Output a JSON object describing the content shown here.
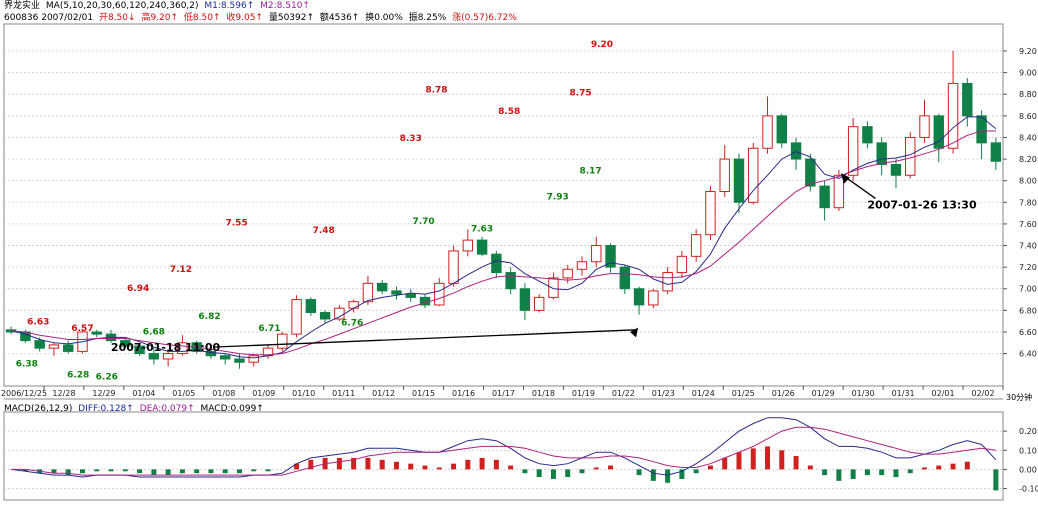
{
  "header": {
    "stock_name": "界龙实业",
    "ma_label": "MA(5,10,20,30,60,120,240,360,2)",
    "m1_label": "M1:8.596↑",
    "m2_label": "M2:8.510↑",
    "code_date": "600836 2007/02/01",
    "open": "开8.50↓",
    "high": "高9.20↑",
    "low": "低8.50↑",
    "close": "收9.05↑",
    "volume": "量50392↑",
    "amount": "额4536↑",
    "turnover": "换0.00%",
    "amplitude": "振8.25%",
    "change": "涨(0.57)6.72%"
  },
  "macd_header": {
    "name": "MACD(26,12,9)",
    "diff": "DIFF:0.128↑",
    "dea": "DEA:0.079↑",
    "macd": "MACD:0.099↑"
  },
  "period_label": "30分钟",
  "annotations": [
    {
      "text": "2007-01-18 11:00",
      "x": 14.5
    },
    {
      "text": "2007-01-26 13:30",
      "x": 60.5
    }
  ],
  "colors": {
    "up": "#d02020",
    "down": "#108048",
    "ma_a": "#2a2a88",
    "ma_b": "#b02080",
    "grid": "#c8c8c8",
    "label_red": "#d01010",
    "label_green": "#108010"
  },
  "chart_data": [
    {
      "type": "candlestick",
      "title": "界龙实业 30分钟",
      "x_tick_labels": [
        "2006/12/25",
        "12/28",
        "12/29",
        "01/04",
        "01/05",
        "01/08",
        "01/09",
        "01/10",
        "01/11",
        "01/12",
        "01/15",
        "01/16",
        "01/17",
        "01/18",
        "01/19",
        "01/22",
        "01/23",
        "01/24",
        "01/25",
        "01/26",
        "01/29",
        "01/30",
        "01/31",
        "02/01",
        "02/02"
      ],
      "y_ticks": [
        6.4,
        6.6,
        6.8,
        7.0,
        7.2,
        7.4,
        7.6,
        7.8,
        8.0,
        8.2,
        8.4,
        8.6,
        8.8,
        9.0,
        9.2
      ],
      "ylim": [
        6.1,
        9.45
      ],
      "grid": true,
      "price_labels": [
        {
          "text": "6.63",
          "x": 2.4,
          "y": 6.63,
          "kind": "high"
        },
        {
          "text": "6.38",
          "x": 1.6,
          "y": 6.38,
          "kind": "low"
        },
        {
          "text": "6.57",
          "x": 5.5,
          "y": 6.57,
          "kind": "high"
        },
        {
          "text": "6.28",
          "x": 5.2,
          "y": 6.28,
          "kind": "low"
        },
        {
          "text": "6.26",
          "x": 7.2,
          "y": 6.26,
          "kind": "low"
        },
        {
          "text": "6.94",
          "x": 9.4,
          "y": 6.94,
          "kind": "high"
        },
        {
          "text": "6.68",
          "x": 10.5,
          "y": 6.68,
          "kind": "low"
        },
        {
          "text": "7.12",
          "x": 12.4,
          "y": 7.12,
          "kind": "high"
        },
        {
          "text": "6.82",
          "x": 14.4,
          "y": 6.82,
          "kind": "low"
        },
        {
          "text": "7.55",
          "x": 16.3,
          "y": 7.55,
          "kind": "high"
        },
        {
          "text": "6.71",
          "x": 18.6,
          "y": 6.71,
          "kind": "low"
        },
        {
          "text": "7.48",
          "x": 22.4,
          "y": 7.48,
          "kind": "high"
        },
        {
          "text": "6.76",
          "x": 24.4,
          "y": 6.76,
          "kind": "low"
        },
        {
          "text": "8.33",
          "x": 28.5,
          "y": 8.33,
          "kind": "high"
        },
        {
          "text": "8.78",
          "x": 30.3,
          "y": 8.78,
          "kind": "high"
        },
        {
          "text": "7.70",
          "x": 29.4,
          "y": 7.7,
          "kind": "low"
        },
        {
          "text": "7.63",
          "x": 33.5,
          "y": 7.63,
          "kind": "low"
        },
        {
          "text": "8.58",
          "x": 35.4,
          "y": 8.58,
          "kind": "high"
        },
        {
          "text": "7.93",
          "x": 38.8,
          "y": 7.93,
          "kind": "low"
        },
        {
          "text": "8.75",
          "x": 40.4,
          "y": 8.75,
          "kind": "high"
        },
        {
          "text": "8.17",
          "x": 41.1,
          "y": 8.17,
          "kind": "low"
        },
        {
          "text": "9.20",
          "x": 41.9,
          "y": 9.2,
          "kind": "high"
        }
      ],
      "candles": [
        [
          6.62,
          6.65,
          6.58,
          6.6
        ],
        [
          6.6,
          6.62,
          6.5,
          6.52
        ],
        [
          6.52,
          6.55,
          6.42,
          6.45
        ],
        [
          6.45,
          6.5,
          6.38,
          6.48
        ],
        [
          6.48,
          6.52,
          6.4,
          6.42
        ],
        [
          6.42,
          6.63,
          6.4,
          6.6
        ],
        [
          6.6,
          6.62,
          6.55,
          6.58
        ],
        [
          6.58,
          6.62,
          6.5,
          6.52
        ],
        [
          6.52,
          6.55,
          6.45,
          6.47
        ],
        [
          6.47,
          6.5,
          6.38,
          6.4
        ],
        [
          6.4,
          6.45,
          6.3,
          6.35
        ],
        [
          6.35,
          6.42,
          6.28,
          6.4
        ],
        [
          6.4,
          6.57,
          6.38,
          6.5
        ],
        [
          6.5,
          6.52,
          6.4,
          6.42
        ],
        [
          6.42,
          6.45,
          6.35,
          6.38
        ],
        [
          6.38,
          6.4,
          6.3,
          6.35
        ],
        [
          6.35,
          6.4,
          6.26,
          6.32
        ],
        [
          6.32,
          6.4,
          6.28,
          6.38
        ],
        [
          6.38,
          6.48,
          6.35,
          6.45
        ],
        [
          6.45,
          6.6,
          6.42,
          6.58
        ],
        [
          6.58,
          6.94,
          6.55,
          6.9
        ],
        [
          6.9,
          6.92,
          6.75,
          6.78
        ],
        [
          6.78,
          6.8,
          6.68,
          6.72
        ],
        [
          6.72,
          6.85,
          6.7,
          6.82
        ],
        [
          6.82,
          6.9,
          6.78,
          6.88
        ],
        [
          6.88,
          7.12,
          6.85,
          7.05
        ],
        [
          7.05,
          7.08,
          6.95,
          6.98
        ],
        [
          6.98,
          7.02,
          6.9,
          6.95
        ],
        [
          6.95,
          7.0,
          6.88,
          6.92
        ],
        [
          6.92,
          6.95,
          6.82,
          6.85
        ],
        [
          6.85,
          7.1,
          6.84,
          7.05
        ],
        [
          7.05,
          7.4,
          7.02,
          7.35
        ],
        [
          7.35,
          7.55,
          7.3,
          7.45
        ],
        [
          7.45,
          7.48,
          7.3,
          7.32
        ],
        [
          7.32,
          7.35,
          7.1,
          7.15
        ],
        [
          7.15,
          7.2,
          6.95,
          7.0
        ],
        [
          7.0,
          7.05,
          6.71,
          6.8
        ],
        [
          6.8,
          6.95,
          6.78,
          6.92
        ],
        [
          6.92,
          7.15,
          6.9,
          7.1
        ],
        [
          7.1,
          7.22,
          7.05,
          7.18
        ],
        [
          7.18,
          7.3,
          7.12,
          7.25
        ],
        [
          7.25,
          7.48,
          7.2,
          7.4
        ],
        [
          7.4,
          7.42,
          7.15,
          7.2
        ],
        [
          7.2,
          7.22,
          6.95,
          7.0
        ],
        [
          7.0,
          7.02,
          6.76,
          6.85
        ],
        [
          6.85,
          7.0,
          6.82,
          6.98
        ],
        [
          6.98,
          7.2,
          6.95,
          7.15
        ],
        [
          7.15,
          7.35,
          7.1,
          7.3
        ],
        [
          7.3,
          7.55,
          7.25,
          7.5
        ],
        [
          7.5,
          7.95,
          7.45,
          7.9
        ],
        [
          7.9,
          8.33,
          7.85,
          8.2
        ],
        [
          8.2,
          8.25,
          7.7,
          7.8
        ],
        [
          7.8,
          8.35,
          7.78,
          8.3
        ],
        [
          8.3,
          8.78,
          8.25,
          8.6
        ],
        [
          8.6,
          8.62,
          8.3,
          8.35
        ],
        [
          8.35,
          8.4,
          8.1,
          8.2
        ],
        [
          8.2,
          8.25,
          7.9,
          7.95
        ],
        [
          7.95,
          8.0,
          7.63,
          7.75
        ],
        [
          7.75,
          8.1,
          7.72,
          8.05
        ],
        [
          8.05,
          8.58,
          8.0,
          8.5
        ],
        [
          8.5,
          8.55,
          8.3,
          8.35
        ],
        [
          8.35,
          8.4,
          8.05,
          8.15
        ],
        [
          8.15,
          8.2,
          7.93,
          8.05
        ],
        [
          8.05,
          8.45,
          8.02,
          8.4
        ],
        [
          8.4,
          8.75,
          8.35,
          8.6
        ],
        [
          8.6,
          8.62,
          8.17,
          8.3
        ],
        [
          8.3,
          9.2,
          8.25,
          8.9
        ],
        [
          8.9,
          8.95,
          8.5,
          8.6
        ],
        [
          8.6,
          8.65,
          8.2,
          8.35
        ],
        [
          8.35,
          8.4,
          8.1,
          8.18
        ]
      ],
      "ma_series": [
        {
          "values": [
            6.61,
            6.58,
            6.53,
            6.5,
            6.49,
            6.51,
            6.54,
            6.55,
            6.55,
            6.51,
            6.46,
            6.42,
            6.42,
            6.43,
            6.41,
            6.4,
            6.37,
            6.36,
            6.38,
            6.41,
            6.51,
            6.6,
            6.68,
            6.74,
            6.82,
            6.89,
            6.92,
            6.94,
            6.96,
            6.95,
            6.98,
            7.05,
            7.13,
            7.2,
            7.26,
            7.24,
            7.14,
            7.07,
            7.0,
            6.99,
            7.05,
            7.18,
            7.24,
            7.22,
            7.18,
            7.09,
            7.04,
            7.06,
            7.16,
            7.32,
            7.56,
            7.74,
            7.91,
            8.05,
            8.2,
            8.27,
            8.22,
            8.06,
            8.02,
            8.1,
            8.16,
            8.2,
            8.21,
            8.24,
            8.31,
            8.36,
            8.49,
            8.59,
            8.59,
            8.48
          ]
        },
        {
          "values": [
            6.61,
            6.6,
            6.57,
            6.55,
            6.53,
            6.53,
            6.54,
            6.54,
            6.54,
            6.52,
            6.5,
            6.48,
            6.47,
            6.46,
            6.44,
            6.42,
            6.4,
            6.39,
            6.39,
            6.4,
            6.44,
            6.49,
            6.53,
            6.58,
            6.63,
            6.68,
            6.73,
            6.78,
            6.83,
            6.87,
            6.91,
            6.96,
            7.02,
            7.07,
            7.11,
            7.12,
            7.11,
            7.1,
            7.09,
            7.08,
            7.09,
            7.12,
            7.14,
            7.14,
            7.13,
            7.11,
            7.1,
            7.11,
            7.14,
            7.21,
            7.32,
            7.43,
            7.55,
            7.67,
            7.79,
            7.9,
            7.97,
            8.0,
            8.04,
            8.09,
            8.13,
            8.16,
            8.18,
            8.21,
            8.25,
            8.29,
            8.35,
            8.42,
            8.46,
            8.46
          ]
        }
      ]
    },
    {
      "type": "bar",
      "title": "MACD(26,12,9)",
      "ylim": [
        -0.16,
        0.3
      ],
      "y_ticks": [
        -0.1,
        0.0,
        0.1,
        0.2
      ],
      "histogram": [
        0.0,
        -0.01,
        -0.02,
        -0.02,
        -0.03,
        -0.02,
        -0.01,
        -0.01,
        -0.01,
        -0.02,
        -0.03,
        -0.03,
        -0.02,
        -0.02,
        -0.02,
        -0.02,
        -0.02,
        -0.01,
        -0.01,
        0.0,
        0.03,
        0.05,
        0.06,
        0.06,
        0.06,
        0.06,
        0.05,
        0.04,
        0.03,
        0.02,
        0.01,
        0.03,
        0.05,
        0.06,
        0.05,
        0.02,
        -0.02,
        -0.04,
        -0.05,
        -0.04,
        -0.02,
        0.01,
        0.02,
        0.0,
        -0.03,
        -0.06,
        -0.07,
        -0.05,
        -0.02,
        0.02,
        0.06,
        0.09,
        0.11,
        0.12,
        0.1,
        0.07,
        0.02,
        -0.03,
        -0.06,
        -0.05,
        -0.03,
        -0.03,
        -0.04,
        -0.02,
        0.01,
        0.02,
        0.03,
        0.04,
        0.0,
        -0.11
      ],
      "diff": [
        0.0,
        -0.01,
        -0.02,
        -0.03,
        -0.03,
        -0.04,
        -0.03,
        -0.03,
        -0.03,
        -0.04,
        -0.04,
        -0.04,
        -0.04,
        -0.04,
        -0.04,
        -0.04,
        -0.04,
        -0.03,
        -0.03,
        -0.02,
        0.03,
        0.06,
        0.07,
        0.08,
        0.09,
        0.11,
        0.11,
        0.11,
        0.1,
        0.09,
        0.09,
        0.12,
        0.15,
        0.16,
        0.15,
        0.11,
        0.06,
        0.03,
        0.02,
        0.03,
        0.06,
        0.09,
        0.09,
        0.06,
        0.02,
        -0.02,
        -0.03,
        -0.01,
        0.03,
        0.08,
        0.14,
        0.2,
        0.24,
        0.27,
        0.27,
        0.26,
        0.22,
        0.16,
        0.12,
        0.12,
        0.11,
        0.09,
        0.06,
        0.06,
        0.08,
        0.1,
        0.13,
        0.15,
        0.13,
        0.05
      ],
      "dea": [
        0.0,
        0.0,
        -0.01,
        -0.02,
        -0.02,
        -0.03,
        -0.03,
        -0.03,
        -0.03,
        -0.03,
        -0.03,
        -0.03,
        -0.03,
        -0.03,
        -0.03,
        -0.03,
        -0.03,
        -0.03,
        -0.03,
        -0.03,
        -0.01,
        0.01,
        0.03,
        0.04,
        0.05,
        0.07,
        0.08,
        0.09,
        0.09,
        0.09,
        0.09,
        0.1,
        0.11,
        0.12,
        0.12,
        0.12,
        0.11,
        0.09,
        0.07,
        0.06,
        0.06,
        0.06,
        0.07,
        0.07,
        0.06,
        0.04,
        0.02,
        0.01,
        0.01,
        0.03,
        0.06,
        0.09,
        0.12,
        0.16,
        0.2,
        0.22,
        0.22,
        0.21,
        0.19,
        0.17,
        0.15,
        0.13,
        0.11,
        0.09,
        0.08,
        0.08,
        0.09,
        0.1,
        0.11,
        0.1
      ]
    }
  ]
}
